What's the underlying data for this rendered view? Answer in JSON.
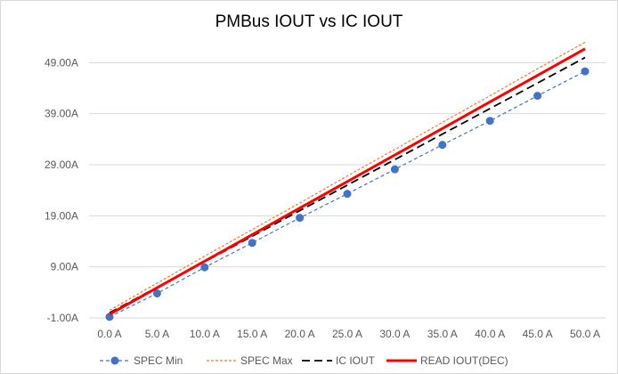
{
  "chart_data": {
    "type": "line",
    "title": "PMBus IOUT vs IC IOUT",
    "xlabel": "",
    "ylabel": "",
    "categories": [
      "0.0 A",
      "5.0 A",
      "10.0 A",
      "15.0 A",
      "20.0 A",
      "25.0 A",
      "30.0 A",
      "35.0 A",
      "40.0 A",
      "45.0 A",
      "50.0 A"
    ],
    "y_ticks": [
      "-1.00A",
      "9.00A",
      "19.00A",
      "29.00A",
      "39.00A",
      "49.00A"
    ],
    "ylim": [
      -1,
      59
    ],
    "grid": true,
    "legend_position": "bottom",
    "series": [
      {
        "name": "SPEC Min",
        "color": "#4472c4",
        "style": "dashed-markers",
        "values": [
          -0.8,
          3.8,
          8.9,
          13.7,
          18.6,
          23.3,
          28.1,
          32.9,
          37.6,
          42.5,
          47.3
        ]
      },
      {
        "name": "SPEC Max",
        "color": "#ed7d31",
        "style": "dashed",
        "values": [
          0.5,
          5.8,
          11.1,
          16.3,
          21.5,
          26.8,
          32.0,
          37.3,
          42.5,
          47.8,
          53.0
        ]
      },
      {
        "name": "IC IOUT",
        "color": "#000000",
        "style": "long-dash",
        "values": [
          0.0,
          5.0,
          10.0,
          15.0,
          20.0,
          25.0,
          30.0,
          35.0,
          40.0,
          45.0,
          50.0
        ]
      },
      {
        "name": "READ IOUT(DEC)",
        "color": "#ff0000",
        "style": "thick",
        "values": [
          -0.3,
          4.9,
          10.1,
          15.3,
          20.5,
          25.7,
          30.9,
          36.1,
          41.3,
          46.5,
          51.7
        ]
      }
    ]
  }
}
